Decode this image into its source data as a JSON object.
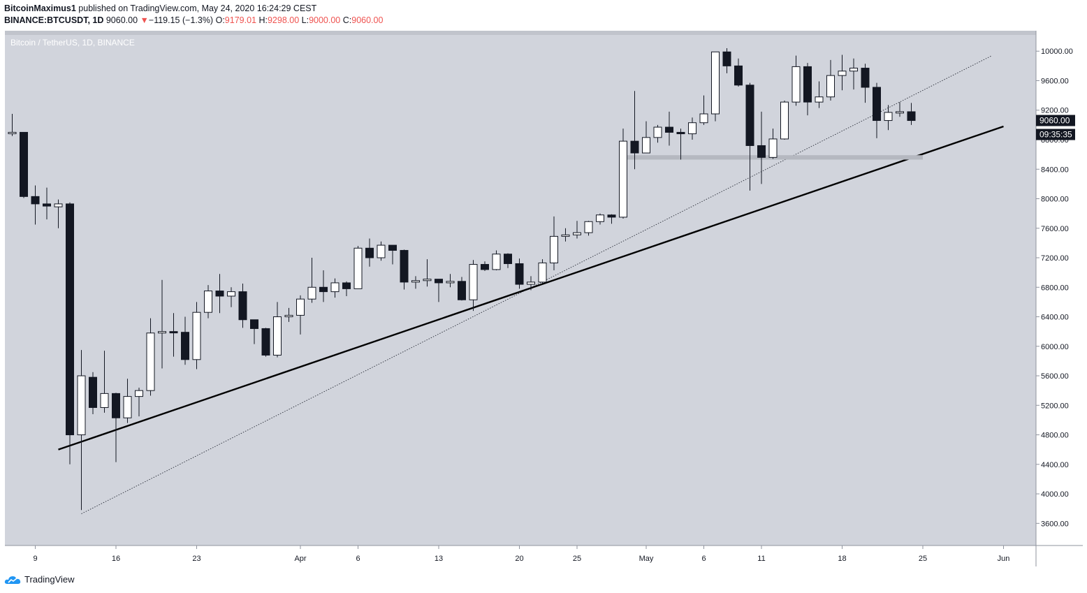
{
  "header": {
    "author": "BitcoinMaximus1",
    "published_text": "published on TradingView.com, May 24, 2020 16:24:29 CEST",
    "symbol": "BINANCE:BTCUSDT, 1D",
    "last_price": "9060.00",
    "change_arrow": "▼",
    "change": "−119.15 (−1.3%)",
    "o_label": "O:",
    "o_value": "9179.01",
    "h_label": "H:",
    "h_value": "9298.00",
    "l_label": "L:",
    "l_value": "9000.00",
    "c_label": "C:",
    "c_value": "9060.00"
  },
  "chart_title": "Bitcoin / TetherUS, 1D, BINANCE",
  "price_badge": "9060.00",
  "countdown_badge": "09:35:35",
  "brand": "TradingView",
  "colors": {
    "background": "#d1d4dc",
    "up_candle": "#ffffff",
    "down_candle": "#131722",
    "outline": "#131722",
    "label_red": "#ef5350"
  },
  "chart_data": {
    "type": "candlestick",
    "title": "Bitcoin / TetherUS, 1D, BINANCE",
    "y_ticks": [
      3600,
      4000,
      4400,
      4800,
      5200,
      5600,
      6000,
      6400,
      6800,
      7200,
      7600,
      8000,
      8400,
      8800,
      9200,
      9600,
      10000
    ],
    "y_tick_labels": [
      "3600.00",
      "4000.00",
      "4400.00",
      "4800.00",
      "5200.00",
      "5600.00",
      "6000.00",
      "6400.00",
      "6800.00",
      "7200.00",
      "7600.00",
      "8000.00",
      "8400.00",
      "8800.00",
      "9200.00",
      "9600.00",
      "10000.00"
    ],
    "ylim": [
      3300,
      10220
    ],
    "x_ticks": [
      {
        "label": "9",
        "date": "2020-03-09"
      },
      {
        "label": "16",
        "date": "2020-03-16"
      },
      {
        "label": "23",
        "date": "2020-03-23"
      },
      {
        "label": "Apr",
        "date": "2020-04-01"
      },
      {
        "label": "6",
        "date": "2020-04-06"
      },
      {
        "label": "13",
        "date": "2020-04-13"
      },
      {
        "label": "20",
        "date": "2020-04-20"
      },
      {
        "label": "25",
        "date": "2020-04-25"
      },
      {
        "label": "May",
        "date": "2020-05-01"
      },
      {
        "label": "6",
        "date": "2020-05-06"
      },
      {
        "label": "11",
        "date": "2020-05-11"
      },
      {
        "label": "18",
        "date": "2020-05-18"
      },
      {
        "label": "25",
        "date": "2020-05-25"
      },
      {
        "label": "Jun",
        "date": "2020-06-01"
      }
    ],
    "candles": [
      {
        "date": "2020-03-07",
        "o": 8900,
        "h": 9150,
        "l": 8850,
        "c": 8900
      },
      {
        "date": "2020-03-08",
        "o": 8900,
        "h": 8900,
        "l": 8010,
        "c": 8030
      },
      {
        "date": "2020-03-09",
        "o": 8030,
        "h": 8180,
        "l": 7650,
        "c": 7930
      },
      {
        "date": "2020-03-10",
        "o": 7930,
        "h": 8150,
        "l": 7720,
        "c": 7900
      },
      {
        "date": "2020-03-11",
        "o": 7890,
        "h": 7990,
        "l": 7600,
        "c": 7930
      },
      {
        "date": "2020-03-12",
        "o": 7930,
        "h": 7950,
        "l": 4400,
        "c": 4800
      },
      {
        "date": "2020-03-13",
        "o": 4800,
        "h": 5950,
        "l": 3780,
        "c": 5600
      },
      {
        "date": "2020-03-14",
        "o": 5580,
        "h": 5650,
        "l": 5080,
        "c": 5170
      },
      {
        "date": "2020-03-15",
        "o": 5170,
        "h": 5940,
        "l": 5100,
        "c": 5360
      },
      {
        "date": "2020-03-16",
        "o": 5360,
        "h": 5370,
        "l": 4430,
        "c": 5030
      },
      {
        "date": "2020-03-17",
        "o": 5030,
        "h": 5560,
        "l": 4960,
        "c": 5320
      },
      {
        "date": "2020-03-18",
        "o": 5320,
        "h": 5440,
        "l": 5050,
        "c": 5400
      },
      {
        "date": "2020-03-19",
        "o": 5400,
        "h": 6380,
        "l": 5330,
        "c": 6180
      },
      {
        "date": "2020-03-20",
        "o": 6180,
        "h": 6900,
        "l": 5700,
        "c": 6200
      },
      {
        "date": "2020-03-21",
        "o": 6200,
        "h": 6450,
        "l": 5860,
        "c": 6190
      },
      {
        "date": "2020-03-22",
        "o": 6190,
        "h": 6400,
        "l": 5750,
        "c": 5820
      },
      {
        "date": "2020-03-23",
        "o": 5820,
        "h": 6600,
        "l": 5690,
        "c": 6460
      },
      {
        "date": "2020-03-24",
        "o": 6460,
        "h": 6830,
        "l": 6380,
        "c": 6750
      },
      {
        "date": "2020-03-25",
        "o": 6750,
        "h": 6980,
        "l": 6450,
        "c": 6680
      },
      {
        "date": "2020-03-26",
        "o": 6680,
        "h": 6800,
        "l": 6530,
        "c": 6740
      },
      {
        "date": "2020-03-27",
        "o": 6740,
        "h": 6850,
        "l": 6250,
        "c": 6360
      },
      {
        "date": "2020-03-28",
        "o": 6360,
        "h": 6360,
        "l": 6030,
        "c": 6240
      },
      {
        "date": "2020-03-29",
        "o": 6240,
        "h": 6250,
        "l": 5860,
        "c": 5880
      },
      {
        "date": "2020-03-30",
        "o": 5880,
        "h": 6600,
        "l": 5850,
        "c": 6400
      },
      {
        "date": "2020-03-31",
        "o": 6400,
        "h": 6520,
        "l": 6330,
        "c": 6420
      },
      {
        "date": "2020-04-01",
        "o": 6420,
        "h": 6690,
        "l": 6160,
        "c": 6640
      },
      {
        "date": "2020-04-02",
        "o": 6640,
        "h": 7200,
        "l": 6590,
        "c": 6800
      },
      {
        "date": "2020-04-03",
        "o": 6800,
        "h": 7030,
        "l": 6600,
        "c": 6740
      },
      {
        "date": "2020-04-04",
        "o": 6740,
        "h": 6920,
        "l": 6660,
        "c": 6860
      },
      {
        "date": "2020-04-05",
        "o": 6860,
        "h": 6880,
        "l": 6680,
        "c": 6780
      },
      {
        "date": "2020-04-06",
        "o": 6780,
        "h": 7360,
        "l": 6780,
        "c": 7330
      },
      {
        "date": "2020-04-07",
        "o": 7330,
        "h": 7460,
        "l": 7080,
        "c": 7200
      },
      {
        "date": "2020-04-08",
        "o": 7200,
        "h": 7420,
        "l": 7160,
        "c": 7370
      },
      {
        "date": "2020-04-09",
        "o": 7370,
        "h": 7370,
        "l": 7110,
        "c": 7300
      },
      {
        "date": "2020-04-10",
        "o": 7300,
        "h": 7310,
        "l": 6770,
        "c": 6870
      },
      {
        "date": "2020-04-11",
        "o": 6870,
        "h": 6950,
        "l": 6780,
        "c": 6890
      },
      {
        "date": "2020-04-12",
        "o": 6890,
        "h": 7180,
        "l": 6810,
        "c": 6910
      },
      {
        "date": "2020-04-13",
        "o": 6910,
        "h": 6910,
        "l": 6600,
        "c": 6860
      },
      {
        "date": "2020-04-14",
        "o": 6860,
        "h": 6980,
        "l": 6800,
        "c": 6880
      },
      {
        "date": "2020-04-15",
        "o": 6880,
        "h": 6940,
        "l": 6620,
        "c": 6630
      },
      {
        "date": "2020-04-16",
        "o": 6630,
        "h": 7170,
        "l": 6480,
        "c": 7110
      },
      {
        "date": "2020-04-17",
        "o": 7110,
        "h": 7150,
        "l": 7020,
        "c": 7040
      },
      {
        "date": "2020-04-18",
        "o": 7040,
        "h": 7300,
        "l": 7030,
        "c": 7250
      },
      {
        "date": "2020-04-19",
        "o": 7250,
        "h": 7260,
        "l": 7060,
        "c": 7120
      },
      {
        "date": "2020-04-20",
        "o": 7120,
        "h": 7190,
        "l": 6780,
        "c": 6840
      },
      {
        "date": "2020-04-21",
        "o": 6840,
        "h": 6950,
        "l": 6760,
        "c": 6870
      },
      {
        "date": "2020-04-22",
        "o": 6870,
        "h": 7180,
        "l": 6850,
        "c": 7130
      },
      {
        "date": "2020-04-23",
        "o": 7130,
        "h": 7760,
        "l": 7030,
        "c": 7490
      },
      {
        "date": "2020-04-24",
        "o": 7490,
        "h": 7600,
        "l": 7420,
        "c": 7510
      },
      {
        "date": "2020-04-25",
        "o": 7510,
        "h": 7700,
        "l": 7460,
        "c": 7540
      },
      {
        "date": "2020-04-26",
        "o": 7540,
        "h": 7700,
        "l": 7500,
        "c": 7690
      },
      {
        "date": "2020-04-27",
        "o": 7690,
        "h": 7800,
        "l": 7650,
        "c": 7780
      },
      {
        "date": "2020-04-28",
        "o": 7780,
        "h": 7790,
        "l": 7660,
        "c": 7750
      },
      {
        "date": "2020-04-29",
        "o": 7750,
        "h": 8950,
        "l": 7730,
        "c": 8780
      },
      {
        "date": "2020-04-30",
        "o": 8780,
        "h": 9460,
        "l": 8400,
        "c": 8620
      },
      {
        "date": "2020-05-01",
        "o": 8620,
        "h": 9050,
        "l": 8620,
        "c": 8830
      },
      {
        "date": "2020-05-02",
        "o": 8830,
        "h": 9000,
        "l": 8760,
        "c": 8970
      },
      {
        "date": "2020-05-03",
        "o": 8970,
        "h": 9180,
        "l": 8720,
        "c": 8900
      },
      {
        "date": "2020-05-04",
        "o": 8900,
        "h": 8950,
        "l": 8530,
        "c": 8880
      },
      {
        "date": "2020-05-05",
        "o": 8880,
        "h": 9100,
        "l": 8800,
        "c": 9030
      },
      {
        "date": "2020-05-06",
        "o": 9030,
        "h": 9400,
        "l": 9000,
        "c": 9150
      },
      {
        "date": "2020-05-07",
        "o": 9150,
        "h": 9980,
        "l": 9050,
        "c": 9990
      },
      {
        "date": "2020-05-08",
        "o": 9990,
        "h": 10040,
        "l": 9700,
        "c": 9800
      },
      {
        "date": "2020-05-09",
        "o": 9800,
        "h": 9900,
        "l": 9520,
        "c": 9540
      },
      {
        "date": "2020-05-10",
        "o": 9540,
        "h": 9570,
        "l": 8110,
        "c": 8720
      },
      {
        "date": "2020-05-11",
        "o": 8720,
        "h": 9180,
        "l": 8200,
        "c": 8560
      },
      {
        "date": "2020-05-12",
        "o": 8560,
        "h": 8950,
        "l": 8540,
        "c": 8810
      },
      {
        "date": "2020-05-13",
        "o": 8810,
        "h": 9330,
        "l": 8800,
        "c": 9310
      },
      {
        "date": "2020-05-14",
        "o": 9310,
        "h": 9940,
        "l": 9260,
        "c": 9790
      },
      {
        "date": "2020-05-15",
        "o": 9790,
        "h": 9840,
        "l": 9130,
        "c": 9310
      },
      {
        "date": "2020-05-16",
        "o": 9310,
        "h": 9590,
        "l": 9230,
        "c": 9380
      },
      {
        "date": "2020-05-17",
        "o": 9380,
        "h": 9880,
        "l": 9330,
        "c": 9670
      },
      {
        "date": "2020-05-18",
        "o": 9670,
        "h": 9950,
        "l": 9470,
        "c": 9730
      },
      {
        "date": "2020-05-19",
        "o": 9730,
        "h": 9900,
        "l": 9480,
        "c": 9770
      },
      {
        "date": "2020-05-20",
        "o": 9770,
        "h": 9830,
        "l": 9300,
        "c": 9510
      },
      {
        "date": "2020-05-21",
        "o": 9510,
        "h": 9570,
        "l": 8820,
        "c": 9060
      },
      {
        "date": "2020-05-22",
        "o": 9060,
        "h": 9270,
        "l": 8930,
        "c": 9170
      },
      {
        "date": "2020-05-23",
        "o": 9170,
        "h": 9310,
        "l": 9110,
        "c": 9180
      },
      {
        "date": "2020-05-24",
        "o": 9179.01,
        "h": 9298,
        "l": 9000,
        "c": 9060
      }
    ],
    "annotations": [
      {
        "type": "trendline",
        "style": "solid",
        "from": {
          "date": "2020-03-11",
          "value": 4600
        },
        "to": {
          "date": "2020-06-01",
          "value": 8980
        }
      },
      {
        "type": "trendline",
        "style": "dotted",
        "from": {
          "date": "2020-03-13",
          "value": 3730
        },
        "to": {
          "date": "2020-05-31",
          "value": 9940
        }
      },
      {
        "type": "range",
        "from_date": "2020-04-29",
        "to_date": "2020-05-25",
        "low": 8530,
        "high": 8590
      }
    ],
    "grid": false,
    "last_price": 9060
  }
}
